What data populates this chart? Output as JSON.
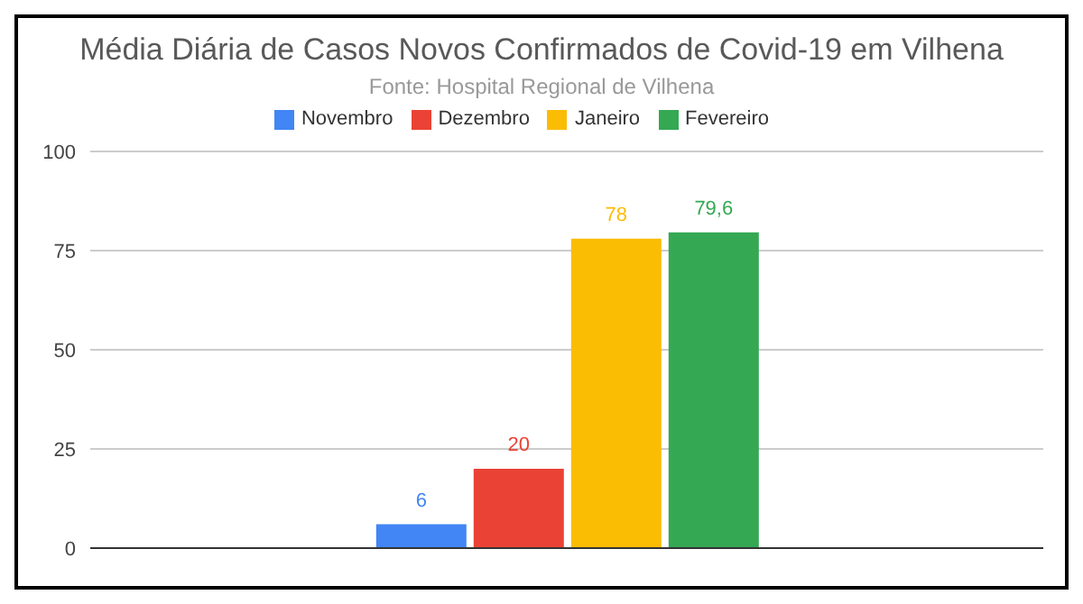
{
  "chart_data": {
    "type": "bar",
    "title": "Média Diária de Casos Novos Confirmados de Covid-19 em Vilhena",
    "subtitle": "Fonte: Hospital Regional de Vilhena",
    "categories": [
      null
    ],
    "series": [
      {
        "name": "Novembro",
        "color": "#4285f4",
        "values": [
          6
        ],
        "value_labels": [
          "6"
        ]
      },
      {
        "name": "Dezembro",
        "color": "#ea4335",
        "values": [
          20
        ],
        "value_labels": [
          "20"
        ]
      },
      {
        "name": "Janeiro",
        "color": "#fbbc04",
        "values": [
          78
        ],
        "value_labels": [
          "78"
        ]
      },
      {
        "name": "Fevereiro",
        "color": "#34a853",
        "values": [
          79.6
        ],
        "value_labels": [
          "79,6"
        ]
      }
    ],
    "ylim": [
      0,
      100
    ],
    "yticks": [
      0,
      25,
      50,
      75,
      100
    ],
    "grid": "y",
    "legend": "top"
  }
}
